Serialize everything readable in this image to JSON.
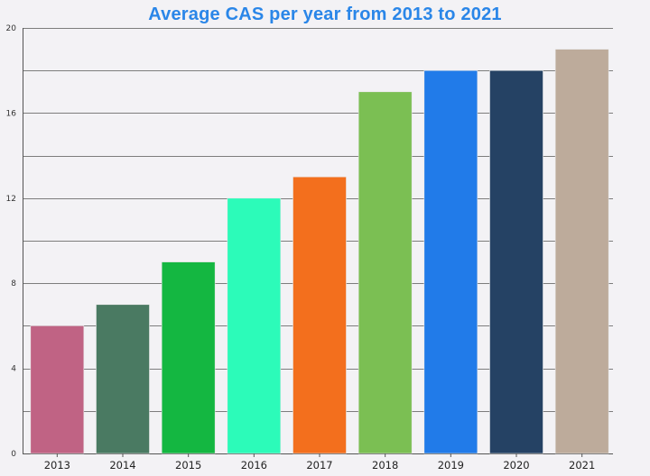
{
  "chart_data": {
    "type": "bar",
    "title": "Average CAS per year from 2013 to 2021",
    "xlabel": "",
    "ylabel": "",
    "categories": [
      "2013",
      "2014",
      "2015",
      "2016",
      "2017",
      "2018",
      "2019",
      "2020",
      "2021"
    ],
    "values": [
      6,
      7,
      9,
      12,
      13,
      17,
      18,
      18,
      19
    ],
    "colors": [
      "#c06384",
      "#4a7a62",
      "#14b741",
      "#2cfbb9",
      "#f36f1d",
      "#7bbf53",
      "#217be9",
      "#254264",
      "#bdab9b"
    ],
    "ylim": [
      0,
      20
    ],
    "yticks": [
      "0",
      "4",
      "8",
      "12",
      "16",
      "20"
    ],
    "grid": true,
    "legend": "none"
  },
  "colors": {
    "title": "#2a86e8",
    "background": "#f3f2f5",
    "grid": "#7d7d7d"
  }
}
